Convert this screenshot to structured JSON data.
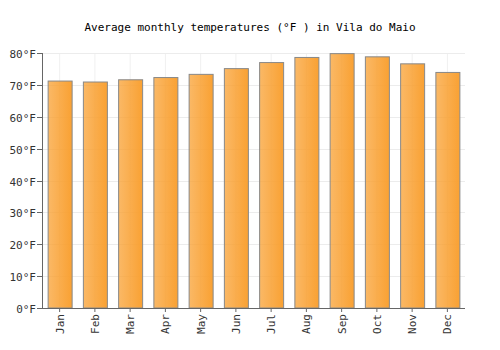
{
  "chart_data": {
    "type": "bar",
    "title": "Average monthly temperatures (°F ) in Vila do Maio",
    "categories": [
      "Jan",
      "Feb",
      "Mar",
      "Apr",
      "May",
      "Jun",
      "Jul",
      "Aug",
      "Sep",
      "Oct",
      "Nov",
      "Dec"
    ],
    "values": [
      71.2,
      70.9,
      71.6,
      72.3,
      73.3,
      75.1,
      77.0,
      78.6,
      79.8,
      78.8,
      76.6,
      73.9
    ],
    "color": "#f9a133",
    "ylim": [
      0,
      80
    ],
    "yticks": [
      {
        "value": 0,
        "label": "0°F"
      },
      {
        "value": 10,
        "label": "10°F"
      },
      {
        "value": 20,
        "label": "20°F"
      },
      {
        "value": 30,
        "label": "30°F"
      },
      {
        "value": 40,
        "label": "40°F"
      },
      {
        "value": 50,
        "label": "50°F"
      },
      {
        "value": 60,
        "label": "60°F"
      },
      {
        "value": 70,
        "label": "70°F"
      },
      {
        "value": 80,
        "label": "80°F"
      }
    ],
    "grid": true
  }
}
